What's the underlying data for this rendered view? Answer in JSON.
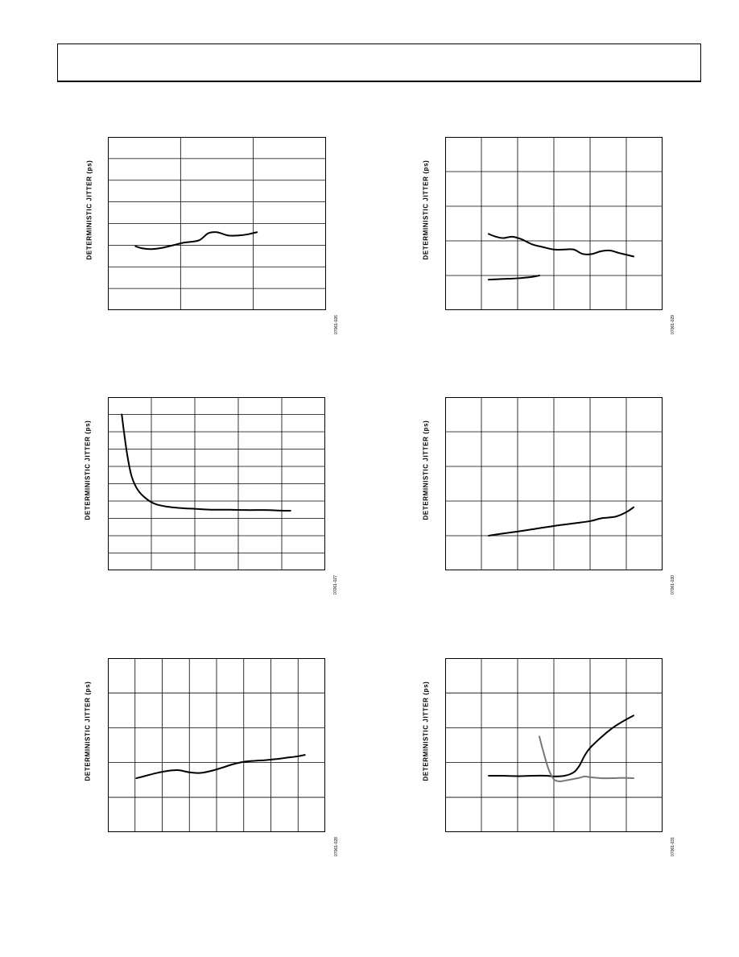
{
  "page": {
    "header_text": ""
  },
  "chart_data": [
    {
      "type": "line",
      "ylabel": "DETERMINISTIC JITTER (ps)",
      "fig_id": "07061-026",
      "grid": {
        "cols": 3,
        "rows": 8
      },
      "xlim": [
        0,
        3
      ],
      "ylim": [
        0,
        8
      ],
      "series": [
        {
          "color": "#000000",
          "x": [
            0.38,
            0.48,
            0.6,
            0.75,
            0.9,
            1.05,
            1.25,
            1.38,
            1.5,
            1.65,
            1.8,
            1.92,
            2.05
          ],
          "y": [
            2.95,
            2.85,
            2.82,
            2.88,
            3.0,
            3.12,
            3.22,
            3.55,
            3.6,
            3.45,
            3.45,
            3.5,
            3.6
          ]
        }
      ]
    },
    {
      "type": "line",
      "ylabel": "DETERMINISTIC JITTER (ps)",
      "fig_id": "07061-029",
      "grid": {
        "cols": 6,
        "rows": 5
      },
      "xlim": [
        0,
        6
      ],
      "ylim": [
        0,
        5
      ],
      "series": [
        {
          "color": "#000000",
          "x": [
            1.2,
            1.4,
            1.6,
            1.85,
            2.1,
            2.4,
            2.7,
            3.0,
            3.3,
            3.55,
            3.8,
            4.05,
            4.3,
            4.55,
            4.8,
            5.0,
            5.2
          ],
          "y": [
            2.2,
            2.12,
            2.08,
            2.12,
            2.05,
            1.9,
            1.82,
            1.75,
            1.75,
            1.75,
            1.62,
            1.62,
            1.7,
            1.72,
            1.65,
            1.6,
            1.55
          ]
        },
        {
          "color": "#000000",
          "x": [
            1.2,
            1.6,
            2.0,
            2.4,
            2.6
          ],
          "y": [
            0.88,
            0.9,
            0.92,
            0.96,
            1.0
          ]
        }
      ]
    },
    {
      "type": "line",
      "ylabel": "DETERMINISTIC JITTER (ps)",
      "fig_id": "07061-027",
      "grid": {
        "cols": 5,
        "rows": 10
      },
      "xlim": [
        0,
        5
      ],
      "ylim": [
        0,
        10
      ],
      "series": [
        {
          "color": "#000000",
          "x": [
            0.32,
            0.37,
            0.45,
            0.55,
            0.7,
            0.9,
            1.1,
            1.35,
            1.65,
            2.0,
            2.4,
            2.8,
            3.2,
            3.6,
            4.0,
            4.2
          ],
          "y": [
            9.0,
            8.0,
            6.6,
            5.4,
            4.6,
            4.1,
            3.82,
            3.68,
            3.6,
            3.55,
            3.5,
            3.5,
            3.48,
            3.48,
            3.45,
            3.44
          ]
        }
      ]
    },
    {
      "type": "line",
      "ylabel": "DETERMINISTIC JITTER (ps)",
      "fig_id": "07061-030",
      "grid": {
        "cols": 6,
        "rows": 5
      },
      "xlim": [
        0,
        6
      ],
      "ylim": [
        0,
        5
      ],
      "series": [
        {
          "color": "#000000",
          "x": [
            1.2,
            1.5,
            2.0,
            2.5,
            3.0,
            3.5,
            4.0,
            4.3,
            4.7,
            5.0,
            5.2
          ],
          "y": [
            1.0,
            1.05,
            1.12,
            1.2,
            1.28,
            1.35,
            1.42,
            1.5,
            1.55,
            1.68,
            1.82
          ]
        }
      ]
    },
    {
      "type": "line",
      "ylabel": "DETERMINISTIC JITTER (ps)",
      "fig_id": "07061-028",
      "grid": {
        "cols": 8,
        "rows": 5
      },
      "xlim": [
        0,
        8
      ],
      "ylim": [
        0,
        5
      ],
      "series": [
        {
          "color": "#000000",
          "x": [
            1.05,
            1.4,
            1.8,
            2.2,
            2.6,
            3.0,
            3.4,
            3.8,
            4.2,
            4.6,
            5.0,
            5.4,
            5.8,
            6.2,
            6.6,
            7.0,
            7.25
          ],
          "y": [
            1.55,
            1.62,
            1.7,
            1.76,
            1.78,
            1.72,
            1.7,
            1.76,
            1.85,
            1.95,
            2.02,
            2.05,
            2.07,
            2.1,
            2.14,
            2.18,
            2.22
          ]
        }
      ]
    },
    {
      "type": "line",
      "ylabel": "DETERMINISTIC JITTER (ps)",
      "fig_id": "07061-031",
      "grid": {
        "cols": 6,
        "rows": 5
      },
      "xlim": [
        0,
        6
      ],
      "ylim": [
        0,
        5
      ],
      "series": [
        {
          "color": "#000000",
          "x": [
            1.2,
            1.6,
            2.0,
            2.4,
            2.8,
            3.0,
            3.3,
            3.55,
            3.7,
            3.85,
            4.0,
            4.3,
            4.6,
            4.9,
            5.2
          ],
          "y": [
            1.62,
            1.62,
            1.61,
            1.62,
            1.62,
            1.6,
            1.62,
            1.72,
            1.9,
            2.2,
            2.42,
            2.72,
            2.98,
            3.18,
            3.35
          ]
        },
        {
          "color": "#777777",
          "x": [
            2.6,
            2.7,
            2.85,
            3.0,
            3.15,
            3.3,
            3.5,
            3.7,
            3.85,
            4.0,
            4.3,
            4.6,
            4.9,
            5.2
          ],
          "y": [
            2.75,
            2.35,
            1.82,
            1.52,
            1.46,
            1.48,
            1.52,
            1.56,
            1.6,
            1.58,
            1.55,
            1.55,
            1.56,
            1.55
          ]
        }
      ]
    }
  ]
}
